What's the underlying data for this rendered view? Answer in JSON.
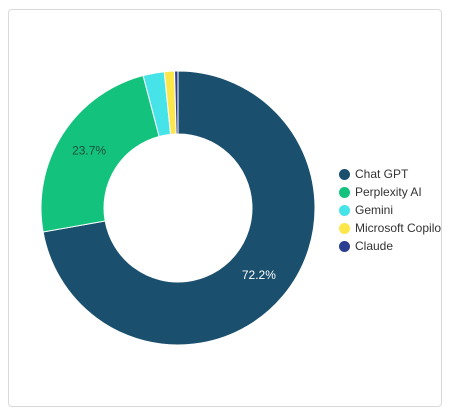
{
  "chart_data": {
    "type": "pie",
    "style": "donut",
    "categories": [
      "Chat GPT",
      "Perplexity AI",
      "Gemini",
      "Microsoft Copilo",
      "Claude"
    ],
    "values": [
      72.2,
      23.7,
      2.5,
      1.2,
      0.4
    ],
    "data_labels": [
      "72.2%",
      "23.7%",
      "",
      "",
      ""
    ],
    "colors": [
      "#1b4f6e",
      "#13c27d",
      "#46e4e8",
      "#fbe74a",
      "#2c3e8f"
    ],
    "legend_position": "right",
    "title": ""
  }
}
